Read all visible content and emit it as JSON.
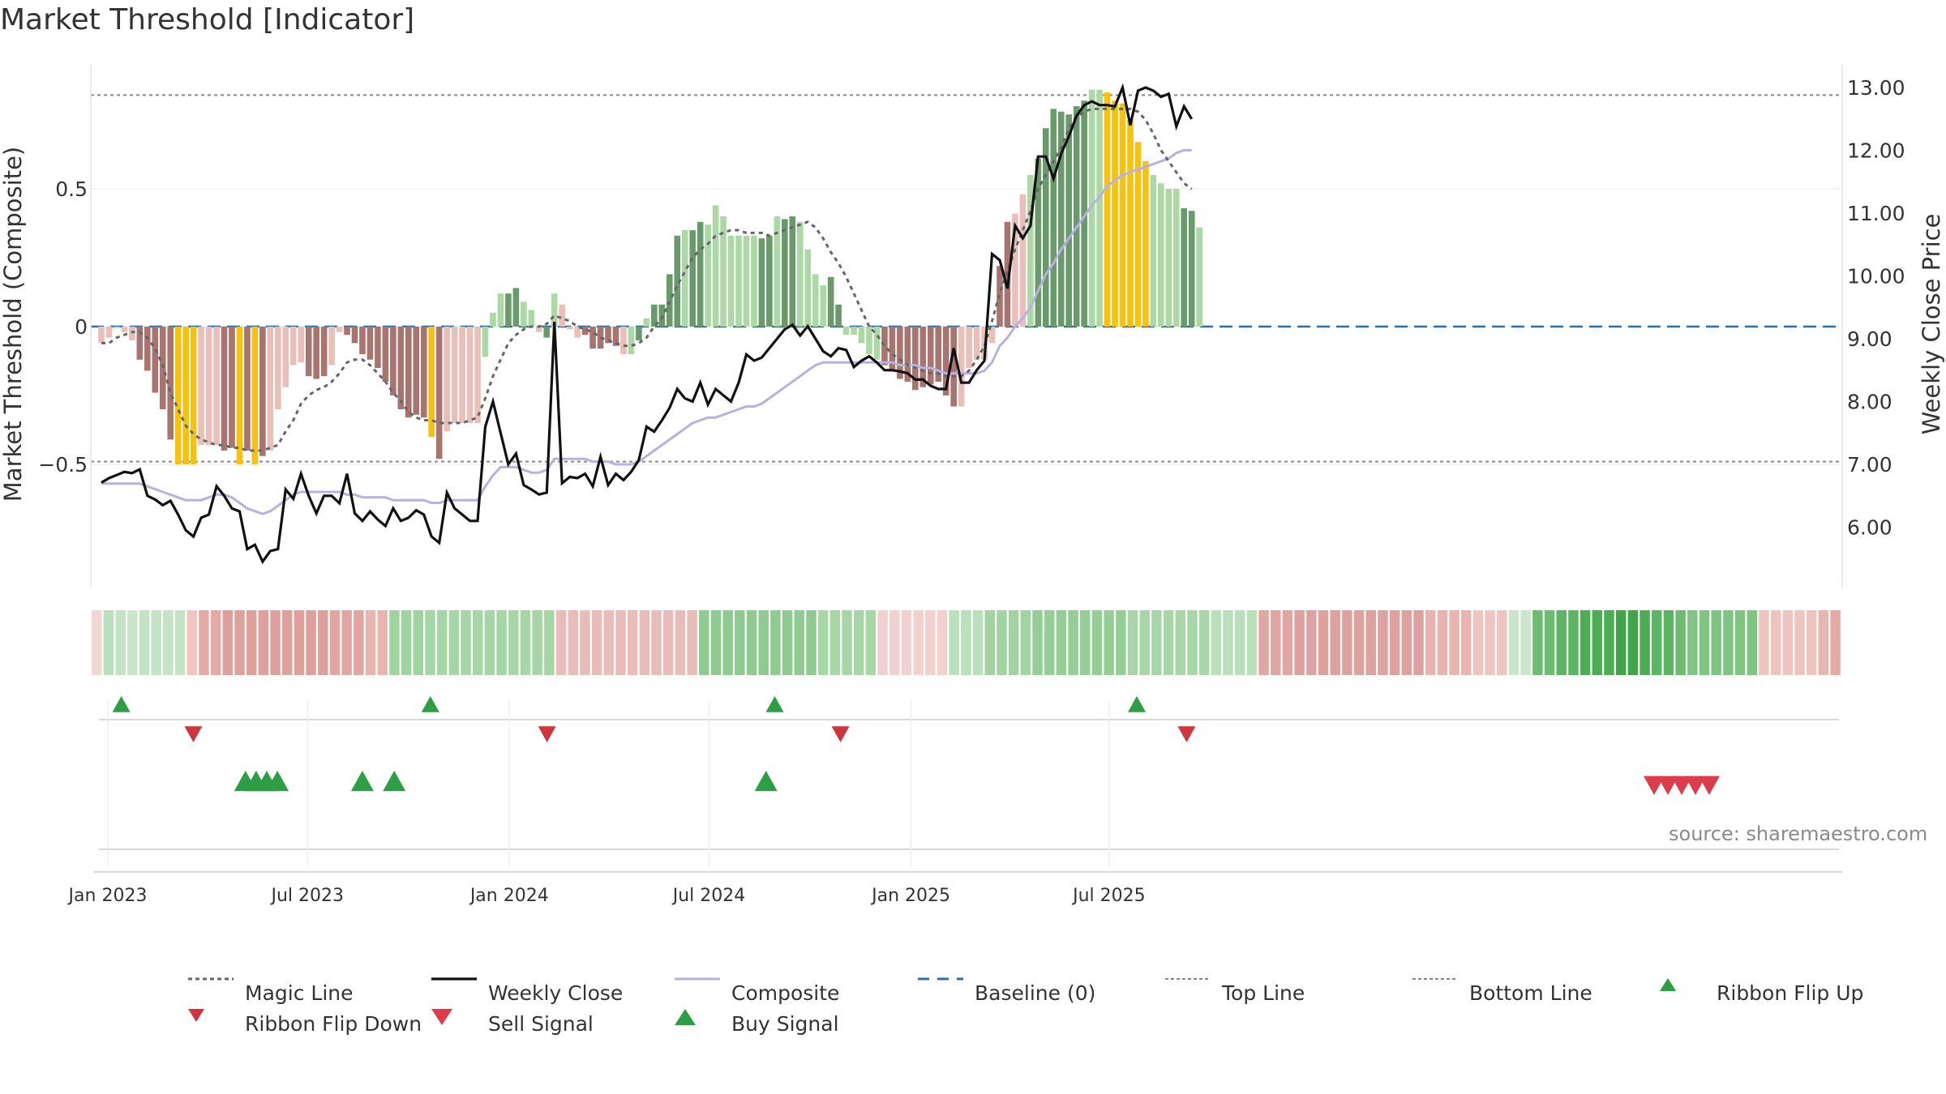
{
  "title": "Market Threshold [Indicator]",
  "source": "source: sharemaestro.com",
  "colors": {
    "magic": "#666666",
    "close": "#111111",
    "composite": "#b8b0e0",
    "baseline": "#2f6f9f",
    "threshold": "#888888",
    "buy": "#2e9e44",
    "sell": "#dd3c4a",
    "flip_up": "#2e9e44",
    "flip_down": "#d0343c",
    "bar_dark_green": "#6a9a6c",
    "bar_light_green": "#acd8a6",
    "bar_dark_red": "#a87470",
    "bar_light_red": "#e9bfba",
    "bar_yellow": "#f7c10f"
  },
  "chart_data": {
    "type": "bar",
    "title": "Market Threshold [Indicator]",
    "ylabel_left": "Market Threshold (Composite)",
    "ylabel_right": "Weekly Close Price",
    "y_left_ticks": [
      {
        "v": 0.5,
        "label": "0.5"
      },
      {
        "v": 0,
        "label": "0"
      },
      {
        "v": -0.5,
        "label": "−0.5"
      }
    ],
    "y_right_ticks": [
      {
        "v": 13,
        "label": "13.00"
      },
      {
        "v": 12,
        "label": "12.00"
      },
      {
        "v": 11,
        "label": "11.00"
      },
      {
        "v": 10,
        "label": "10.00"
      },
      {
        "v": 9,
        "label": "9.00"
      },
      {
        "v": 8,
        "label": "8.00"
      },
      {
        "v": 7,
        "label": "7.00"
      },
      {
        "v": 6,
        "label": "6.00"
      }
    ],
    "x_ticks": [
      {
        "label": "Jan 2023",
        "week": 0
      },
      {
        "label": "Jul 2023",
        "week": 26
      },
      {
        "label": "Jan 2024",
        "week": 52.3
      },
      {
        "label": "Jul 2024",
        "week": 78.3
      },
      {
        "label": "Jan 2025",
        "week": 104.6
      },
      {
        "label": "Jul 2025",
        "week": 130.4
      }
    ],
    "top_line": 0.84,
    "bottom_line": -0.49,
    "baseline": 0,
    "composite": [
      -0.06,
      -0.04,
      0.0,
      -0.02,
      -0.05,
      -0.12,
      -0.16,
      -0.24,
      -0.3,
      -0.41,
      -0.5,
      -0.5,
      -0.5,
      -0.43,
      -0.43,
      -0.43,
      -0.45,
      -0.44,
      -0.5,
      -0.45,
      -0.5,
      -0.47,
      -0.45,
      -0.3,
      -0.22,
      -0.14,
      -0.13,
      -0.18,
      -0.19,
      -0.18,
      -0.14,
      -0.02,
      -0.03,
      -0.06,
      -0.1,
      -0.12,
      -0.15,
      -0.2,
      -0.25,
      -0.3,
      -0.33,
      -0.32,
      -0.33,
      -0.4,
      -0.48,
      -0.38,
      -0.35,
      -0.35,
      -0.35,
      -0.35,
      -0.11,
      0.05,
      0.12,
      0.12,
      0.14,
      0.09,
      0.06,
      -0.02,
      -0.04,
      0.12,
      0.08,
      -0.01,
      -0.04,
      -0.03,
      -0.08,
      -0.08,
      -0.06,
      -0.07,
      -0.1,
      -0.1,
      -0.05,
      0.03,
      0.08,
      0.08,
      0.19,
      0.33,
      0.35,
      0.35,
      0.38,
      0.37,
      0.44,
      0.4,
      0.33,
      0.33,
      0.33,
      0.33,
      0.32,
      0.33,
      0.4,
      0.39,
      0.4,
      0.38,
      0.28,
      0.19,
      0.15,
      0.18,
      0.08,
      -0.03,
      -0.03,
      -0.06,
      -0.1,
      -0.12,
      -0.14,
      -0.16,
      -0.19,
      -0.2,
      -0.23,
      -0.22,
      -0.21,
      -0.2,
      -0.25,
      -0.29,
      -0.29,
      -0.15,
      -0.12,
      -0.12,
      -0.06,
      0.22,
      0.38,
      0.41,
      0.48,
      0.55,
      0.61,
      0.72,
      0.79,
      0.78,
      0.77,
      0.8,
      0.82,
      0.86,
      0.86,
      0.85,
      0.82,
      0.81,
      0.75,
      0.67,
      0.6,
      0.55,
      0.52,
      0.5,
      0.5,
      0.43,
      0.42,
      0.36
    ],
    "composite_colors": "rrrrrRRRRRyyyrrrRRyRyRrrrrrRRRrrRRRRRRRRRRRyRrrrrrgggGGggrGgrrrRRRRRrgGgGGGGgGGgggggggGGgGGggggGGgggggRRRRRRRRRRrrrrrRRrrgGGGGGGGggyyyyyyggggGGgg",
    "weekly_close": [
      6.71,
      6.78,
      6.83,
      6.88,
      6.86,
      6.92,
      6.5,
      6.44,
      6.35,
      6.42,
      6.2,
      5.95,
      5.85,
      6.15,
      6.2,
      6.65,
      6.5,
      6.3,
      6.25,
      5.65,
      5.72,
      5.45,
      5.62,
      5.65,
      6.6,
      6.45,
      6.85,
      6.5,
      6.22,
      6.5,
      6.5,
      6.38,
      6.85,
      6.22,
      6.1,
      6.25,
      6.12,
      6.02,
      6.3,
      6.1,
      6.15,
      6.27,
      6.2,
      5.85,
      5.75,
      6.55,
      6.3,
      6.2,
      6.1,
      6.1,
      7.6,
      8.0,
      7.5,
      7.0,
      7.17,
      6.67,
      6.6,
      6.52,
      6.55,
      9.27,
      6.7,
      6.8,
      6.78,
      6.85,
      6.65,
      7.12,
      6.67,
      6.85,
      6.75,
      6.88,
      7.07,
      7.6,
      7.52,
      7.7,
      7.9,
      8.2,
      8.05,
      8.0,
      8.3,
      7.95,
      8.2,
      8.1,
      8.0,
      8.3,
      8.75,
      8.65,
      8.7,
      8.85,
      9.0,
      9.15,
      9.22,
      9.05,
      9.2,
      9.0,
      8.8,
      8.72,
      8.85,
      8.82,
      8.55,
      8.65,
      8.72,
      8.62,
      8.5,
      8.5,
      8.48,
      8.45,
      8.35,
      8.35,
      8.25,
      8.2,
      8.2,
      8.85,
      8.3,
      8.3,
      8.5,
      8.65,
      10.35,
      10.25,
      9.8,
      10.8,
      10.6,
      10.8,
      11.9,
      11.9,
      11.55,
      11.95,
      12.22,
      12.55,
      12.72,
      12.78,
      12.72,
      12.72,
      12.7,
      13.0,
      12.4,
      12.95,
      13.0,
      12.95,
      12.85,
      12.9,
      12.38,
      12.7,
      12.5
    ],
    "composite_line": [
      -0.57,
      -0.57,
      -0.57,
      -0.57,
      -0.57,
      -0.57,
      -0.58,
      -0.59,
      -0.6,
      -0.61,
      -0.62,
      -0.63,
      -0.63,
      -0.63,
      -0.62,
      -0.61,
      -0.61,
      -0.62,
      -0.64,
      -0.66,
      -0.67,
      -0.68,
      -0.67,
      -0.65,
      -0.63,
      -0.61,
      -0.6,
      -0.6,
      -0.6,
      -0.6,
      -0.6,
      -0.6,
      -0.61,
      -0.61,
      -0.62,
      -0.62,
      -0.62,
      -0.62,
      -0.63,
      -0.63,
      -0.63,
      -0.63,
      -0.63,
      -0.64,
      -0.64,
      -0.63,
      -0.63,
      -0.63,
      -0.63,
      -0.63,
      -0.58,
      -0.54,
      -0.51,
      -0.51,
      -0.51,
      -0.52,
      -0.53,
      -0.53,
      -0.52,
      -0.48,
      -0.48,
      -0.48,
      -0.48,
      -0.48,
      -0.49,
      -0.49,
      -0.49,
      -0.5,
      -0.5,
      -0.5,
      -0.49,
      -0.47,
      -0.45,
      -0.43,
      -0.41,
      -0.39,
      -0.37,
      -0.35,
      -0.34,
      -0.33,
      -0.33,
      -0.32,
      -0.31,
      -0.3,
      -0.29,
      -0.29,
      -0.28,
      -0.26,
      -0.24,
      -0.22,
      -0.2,
      -0.18,
      -0.16,
      -0.14,
      -0.13,
      -0.13,
      -0.13,
      -0.13,
      -0.13,
      -0.13,
      -0.13,
      -0.13,
      -0.13,
      -0.13,
      -0.14,
      -0.14,
      -0.14,
      -0.15,
      -0.15,
      -0.16,
      -0.17,
      -0.17,
      -0.17,
      -0.17,
      -0.17,
      -0.16,
      -0.13,
      -0.07,
      -0.04,
      0.0,
      0.03,
      0.07,
      0.13,
      0.19,
      0.23,
      0.28,
      0.32,
      0.36,
      0.4,
      0.44,
      0.47,
      0.51,
      0.53,
      0.55,
      0.56,
      0.57,
      0.58,
      0.59,
      0.6,
      0.61,
      0.63,
      0.64,
      0.64
    ],
    "magic_line": [
      -0.06,
      -0.06,
      -0.04,
      -0.03,
      -0.02,
      -0.02,
      -0.04,
      -0.08,
      -0.14,
      -0.24,
      -0.3,
      -0.36,
      -0.39,
      -0.41,
      -0.42,
      -0.43,
      -0.43,
      -0.44,
      -0.44,
      -0.45,
      -0.45,
      -0.45,
      -0.44,
      -0.43,
      -0.38,
      -0.34,
      -0.28,
      -0.25,
      -0.23,
      -0.22,
      -0.2,
      -0.17,
      -0.13,
      -0.12,
      -0.12,
      -0.14,
      -0.17,
      -0.2,
      -0.24,
      -0.27,
      -0.31,
      -0.33,
      -0.34,
      -0.34,
      -0.35,
      -0.35,
      -0.35,
      -0.35,
      -0.34,
      -0.33,
      -0.26,
      -0.18,
      -0.12,
      -0.06,
      -0.03,
      -0.01,
      0.0,
      0.0,
      0.01,
      0.04,
      0.03,
      0.02,
      0.0,
      -0.01,
      -0.02,
      -0.04,
      -0.05,
      -0.06,
      -0.07,
      -0.07,
      -0.06,
      -0.04,
      0.0,
      0.03,
      0.09,
      0.15,
      0.2,
      0.25,
      0.28,
      0.3,
      0.33,
      0.34,
      0.35,
      0.35,
      0.34,
      0.34,
      0.34,
      0.33,
      0.34,
      0.35,
      0.36,
      0.37,
      0.38,
      0.36,
      0.32,
      0.27,
      0.23,
      0.18,
      0.12,
      0.06,
      0.0,
      -0.03,
      -0.07,
      -0.1,
      -0.12,
      -0.14,
      -0.15,
      -0.16,
      -0.17,
      -0.17,
      -0.18,
      -0.18,
      -0.18,
      -0.16,
      -0.12,
      -0.07,
      0.02,
      0.12,
      0.2,
      0.28,
      0.35,
      0.42,
      0.5,
      0.55,
      0.6,
      0.65,
      0.72,
      0.76,
      0.78,
      0.79,
      0.79,
      0.79,
      0.79,
      0.79,
      0.79,
      0.78,
      0.75,
      0.7,
      0.64,
      0.6,
      0.56,
      0.52,
      0.5
    ],
    "ribbon_colors": [
      "#f2d6d4",
      "#b9e0bb",
      "#c3e3c4",
      "#c9e6ca",
      "#c3e3c4",
      "#c5e4c6",
      "#c5e4c6",
      "#c5e4c6",
      "#efc4c1",
      "#e5aaa6",
      "#e5aaa6",
      "#dfa09c",
      "#dfa09c",
      "#dfa09c",
      "#dfa09c",
      "#dfa09c",
      "#dfa09c",
      "#dfa09c",
      "#dfa09c",
      "#dfa09c",
      "#e2a6a1",
      "#e2a6a1",
      "#e2a6a1",
      "#e8b4b0",
      "#e8b4b0",
      "#9fd39f",
      "#9fd39f",
      "#9fd39f",
      "#a5d6a5",
      "#a5d6a5",
      "#a5d6a5",
      "#a5d6a5",
      "#a5d6a5",
      "#a5d6a5",
      "#a5d6a5",
      "#a5d6a5",
      "#a5d6a5",
      "#a5d6a5",
      "#a5d6a5",
      "#e8bcb8",
      "#e8bcb8",
      "#e8bcb8",
      "#e8bcb8",
      "#e8bcb8",
      "#e8bcb8",
      "#e8bcb8",
      "#e8bcb8",
      "#e8bcb8",
      "#e8bcb8",
      "#e8bcb8",
      "#e8bcb8",
      "#8fcb90",
      "#8fcb90",
      "#8fcb90",
      "#8fcb90",
      "#8fcb90",
      "#8fcb90",
      "#8fcb90",
      "#8fcb90",
      "#8fcb90",
      "#8fcb90",
      "#a7d7a7",
      "#a7d7a7",
      "#a7d7a7",
      "#a7d7a7",
      "#a7d7a7",
      "#f1d0ce",
      "#f1d0ce",
      "#f1d0ce",
      "#f1d0ce",
      "#f1d0ce",
      "#f1d0ce",
      "#b9e0bb",
      "#b9e0bb",
      "#b9e0bb",
      "#a1d4a1",
      "#a1d4a1",
      "#a1d4a1",
      "#a1d4a1",
      "#94ce95",
      "#94ce95",
      "#94ce95",
      "#94ce95",
      "#94ce95",
      "#94ce95",
      "#94ce95",
      "#94ce95",
      "#a7d7a7",
      "#a7d7a7",
      "#a7d7a7",
      "#a7d7a7",
      "#a7d7a7",
      "#a7d7a7",
      "#a7d7a7",
      "#b9e0bb",
      "#b9e0bb",
      "#b9e0bb",
      "#b9e0bb",
      "#e2a6a1",
      "#e2a6a1",
      "#e2a6a1",
      "#dea29e",
      "#dea29e",
      "#dea29e",
      "#dea29e",
      "#dea29e",
      "#dea29e",
      "#dea29e",
      "#dea29e",
      "#dea29e",
      "#dea29e",
      "#dea29e",
      "#e8b4b0",
      "#e8b4b0",
      "#e8b4b0",
      "#e8b4b0",
      "#eec4c0",
      "#eec4c0",
      "#eec4c0",
      "#c9e6ca",
      "#c9e6ca",
      "#6cbd70",
      "#6cbd70",
      "#5cb563",
      "#5cb563",
      "#4cad54",
      "#4cad54",
      "#4cad54",
      "#3fa548",
      "#3fa548",
      "#4cad54",
      "#5cb563",
      "#5cb563",
      "#6cbd70",
      "#7fc480",
      "#7fc480",
      "#7fc480",
      "#7fc480",
      "#7fc480",
      "#7fc480",
      "#eec4c0",
      "#eec4c0",
      "#eec4c0",
      "#eec4c0",
      "#eec4c0",
      "#e8b4b0",
      "#e5aaa6"
    ],
    "ribbon_flip_up_weeks": [
      2,
      37,
      76,
      117
    ],
    "ribbon_flip_down_weeks": [
      11,
      58,
      97,
      143
    ],
    "buy_signal_weeks": [
      18,
      19,
      20,
      21,
      29,
      32,
      67
    ],
    "sell_signal_weeks": [
      197,
      198,
      199,
      200,
      201
    ],
    "legend": [
      {
        "key": "magic",
        "label": "Magic Line"
      },
      {
        "key": "close",
        "label": "Weekly Close"
      },
      {
        "key": "composite",
        "label": "Composite"
      },
      {
        "key": "baseline",
        "label": "Baseline (0)"
      },
      {
        "key": "top",
        "label": "Top Line"
      },
      {
        "key": "bottom",
        "label": "Bottom Line"
      },
      {
        "key": "flip_up",
        "label": "Ribbon Flip Up"
      },
      {
        "key": "flip_down",
        "label": "Ribbon Flip Down"
      },
      {
        "key": "sell",
        "label": "Sell Signal"
      },
      {
        "key": "buy",
        "label": "Buy Signal"
      }
    ]
  }
}
